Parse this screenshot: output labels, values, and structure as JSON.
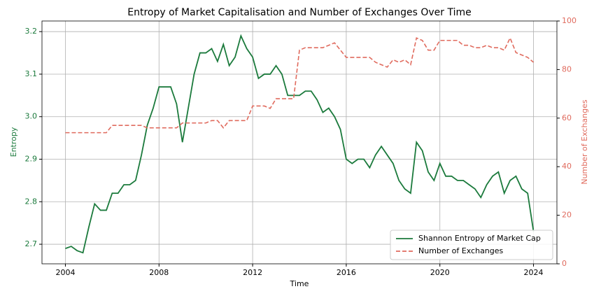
{
  "chart_data": {
    "type": "line",
    "title": "Entropy of Market Capitalisation and Number of Exchanges Over Time",
    "xlabel": "Time",
    "ylabel": "Entropy",
    "y2label": "Number of Exchanges",
    "x": [
      2004,
      2004.25,
      2004.5,
      2004.75,
      2005,
      2005.25,
      2005.5,
      2005.75,
      2006,
      2006.25,
      2006.5,
      2006.75,
      2007,
      2007.25,
      2007.5,
      2007.75,
      2008,
      2008.25,
      2008.5,
      2008.75,
      2009,
      2009.25,
      2009.5,
      2009.75,
      2010,
      2010.25,
      2010.5,
      2010.75,
      2011,
      2011.25,
      2011.5,
      2011.75,
      2012,
      2012.25,
      2012.5,
      2012.75,
      2013,
      2013.25,
      2013.5,
      2013.75,
      2014,
      2014.25,
      2014.5,
      2014.75,
      2015,
      2015.25,
      2015.5,
      2015.75,
      2016,
      2016.25,
      2016.5,
      2016.75,
      2017,
      2017.25,
      2017.5,
      2017.75,
      2018,
      2018.25,
      2018.5,
      2018.75,
      2019,
      2019.25,
      2019.5,
      2019.75,
      2020,
      2020.25,
      2020.5,
      2020.75,
      2021,
      2021.25,
      2021.5,
      2021.75,
      2022,
      2022.25,
      2022.5,
      2022.75,
      2023,
      2023.25,
      2023.5,
      2023.75,
      2024
    ],
    "series": [
      {
        "name": "Shannon Entropy of Market Cap",
        "color": "#1b7a3c",
        "dash": false,
        "axis": "y",
        "values": [
          2.69,
          2.695,
          2.685,
          2.68,
          2.74,
          2.795,
          2.78,
          2.78,
          2.82,
          2.82,
          2.84,
          2.84,
          2.85,
          2.91,
          2.98,
          3.02,
          3.07,
          3.07,
          3.07,
          3.03,
          2.94,
          3.02,
          3.1,
          3.15,
          3.15,
          3.16,
          3.13,
          3.17,
          3.12,
          3.14,
          3.19,
          3.16,
          3.14,
          3.09,
          3.1,
          3.1,
          3.12,
          3.1,
          3.05,
          3.05,
          3.05,
          3.06,
          3.06,
          3.04,
          3.01,
          3.02,
          3.0,
          2.97,
          2.9,
          2.89,
          2.9,
          2.9,
          2.88,
          2.91,
          2.93,
          2.91,
          2.89,
          2.85,
          2.83,
          2.82,
          2.94,
          2.92,
          2.87,
          2.85,
          2.89,
          2.86,
          2.86,
          2.85,
          2.85,
          2.84,
          2.83,
          2.81,
          2.84,
          2.86,
          2.87,
          2.82,
          2.85,
          2.86,
          2.83,
          2.82,
          2.73
        ]
      },
      {
        "name": "Number of Exchanges",
        "color": "#e06b5e",
        "dash": true,
        "axis": "y2",
        "values": [
          54,
          54,
          54,
          54,
          54,
          54,
          54,
          54,
          57,
          57,
          57,
          57,
          57,
          57,
          56,
          56,
          56,
          56,
          56,
          56,
          58,
          58,
          58,
          58,
          58,
          59,
          59,
          56,
          59,
          59,
          59,
          59,
          65,
          65,
          65,
          64,
          68,
          68,
          68,
          68,
          88,
          89,
          89,
          89,
          89,
          90,
          91,
          88,
          85,
          85,
          85,
          85,
          85,
          83,
          82,
          81,
          84,
          83,
          84,
          82,
          93,
          92,
          88,
          88,
          92,
          92,
          92,
          92,
          90,
          90,
          89,
          89,
          90,
          89,
          89,
          88,
          93,
          87,
          86,
          85,
          83
        ]
      }
    ],
    "xlim": [
      2003,
      2025
    ],
    "xticks": [
      2004,
      2008,
      2012,
      2016,
      2020,
      2024
    ],
    "ylim": [
      2.654,
      3.225
    ],
    "yticks": [
      2.7,
      2.8,
      2.9,
      {
        "value": 3,
        "label": "3.0"
      },
      3.1,
      3.2
    ],
    "y2lim": [
      0,
      100
    ],
    "y2ticks": [
      0,
      20,
      40,
      60,
      80,
      100
    ],
    "grid": true,
    "legend": "lower right"
  }
}
